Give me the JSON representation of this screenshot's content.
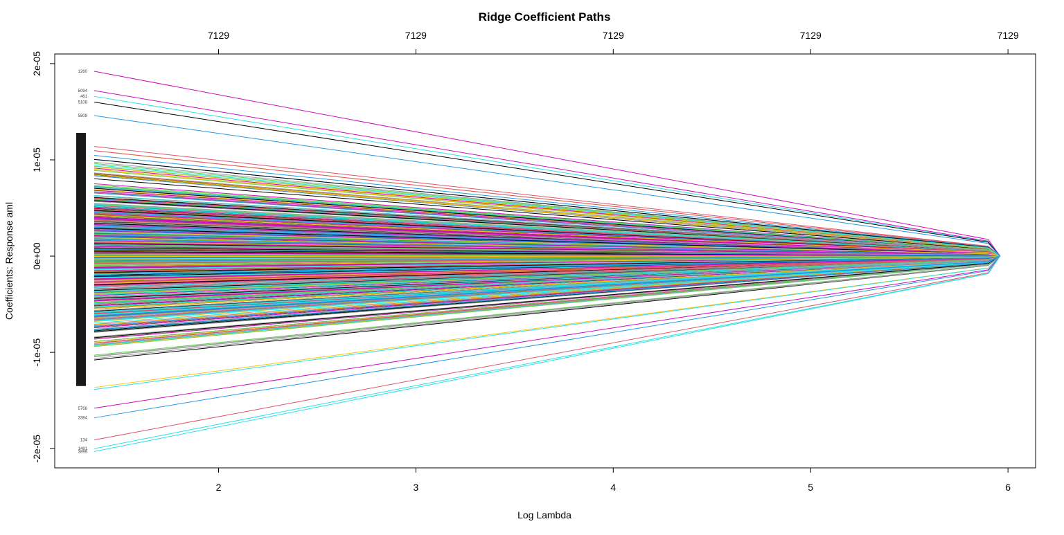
{
  "chart_data": {
    "type": "line",
    "title": "Ridge Coefficient Paths",
    "xlabel": "Log Lambda",
    "ylabel": "Coefficients: Response aml",
    "xlim": [
      1.17,
      6.14
    ],
    "ylim": [
      -2.2e-05,
      2.1e-05
    ],
    "x_ticks": [
      2,
      3,
      4,
      5,
      6
    ],
    "x_tick_labels": [
      "2",
      "3",
      "4",
      "5",
      "6"
    ],
    "y_ticks": [
      -2e-05,
      -1e-05,
      0,
      1e-05,
      2e-05
    ],
    "y_tick_labels": [
      "-2e-05",
      "-1e-05",
      "0e+00",
      "1e-05",
      "2e-05"
    ],
    "top_ticks": [
      2,
      3,
      4,
      5,
      6
    ],
    "top_tick_labels": [
      "7129",
      "7129",
      "7129",
      "7129",
      "7129"
    ],
    "x_path_start": 1.37,
    "x_path_end": 5.96,
    "grid": false,
    "palette": [
      "#000000",
      "#DF536B",
      "#61D04F",
      "#2297E6",
      "#28E2E5",
      "#CD0BBC",
      "#F5C710",
      "#9E9E9E"
    ],
    "n_paths_total": 7129,
    "n_paths_drawn_approx": 700,
    "extreme_paths": [
      {
        "label": "1260",
        "start": 1.92e-05,
        "color": "#CD0BBC"
      },
      {
        "label": "5094",
        "start": 1.72e-05,
        "color": "#CD0BBC"
      },
      {
        "label": "461",
        "start": 1.66e-05,
        "color": "#28E2E5"
      },
      {
        "label": "5108",
        "start": 1.6e-05,
        "color": "#000000"
      },
      {
        "label": "5808",
        "start": 1.46e-05,
        "color": "#2297E6"
      },
      {
        "label": "5766",
        "start": -1.58e-05,
        "color": "#CD0BBC"
      },
      {
        "label": "3384",
        "start": -1.68e-05,
        "color": "#2297E6"
      },
      {
        "label": "134",
        "start": -1.91e-05,
        "color": "#DF536B"
      },
      {
        "label": "1481",
        "start": -2e-05,
        "color": "#28E2E5"
      },
      {
        "label": "3899",
        "start": -2.03e-05,
        "color": "#28E2E5"
      }
    ]
  }
}
